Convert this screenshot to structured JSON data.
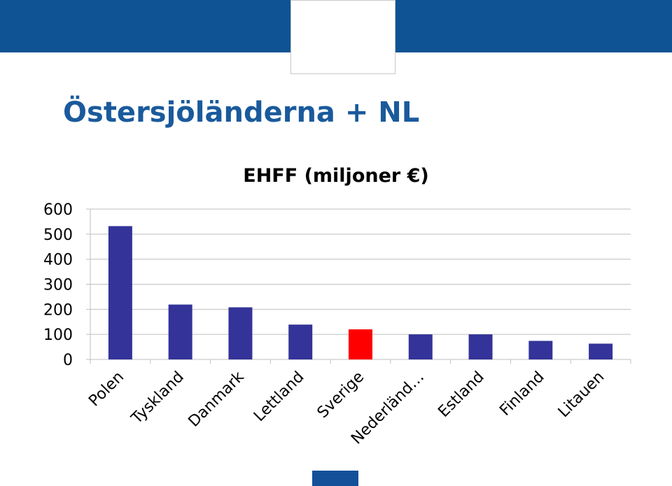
{
  "slide": {
    "title": "Östersjöländerna + NL",
    "band_color": "#0f5394",
    "title_color": "#1a5a9c",
    "footer_tab_color": "#14509a"
  },
  "chart_data": {
    "type": "bar",
    "title": "EHFF (miljoner €)",
    "xlabel": "",
    "ylabel": "",
    "categories": [
      "Polen",
      "Tyskland",
      "Danmark",
      "Lettland",
      "Sverige",
      "Nederländ…",
      "Estland",
      "Finland",
      "Litauen"
    ],
    "values": [
      532,
      219,
      208,
      139,
      120,
      100,
      100,
      74,
      63
    ],
    "ylim": [
      0,
      600
    ],
    "yticks": [
      0,
      100,
      200,
      300,
      400,
      500,
      600
    ],
    "grid": true,
    "legend": "none",
    "bar_color": "#333399",
    "highlight_color": "#ff0000",
    "highlight_category": "Sverige"
  }
}
